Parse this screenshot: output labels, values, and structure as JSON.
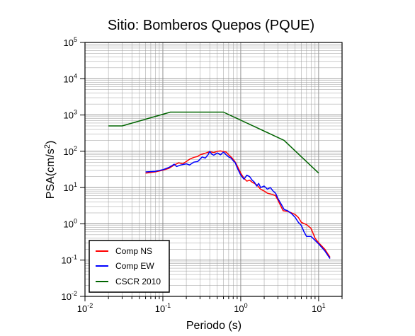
{
  "chart_data": {
    "type": "line",
    "title": "Sitio: Bomberos Quepos (PQUE)",
    "xlabel": "Periodo (s)",
    "ylabel_base": "PSA(cm/s",
    "ylabel_sup": "2",
    "ylabel_end": ")",
    "xscale": "log",
    "yscale": "log",
    "xlim": [
      0.01,
      20
    ],
    "ylim": [
      0.01,
      100000
    ],
    "grid": true,
    "legend_position": "bottom-left",
    "x_ticks": [
      {
        "base": "10",
        "exp": "-2",
        "value": 0.01
      },
      {
        "base": "10",
        "exp": "-1",
        "value": 0.1
      },
      {
        "base": "10",
        "exp": "0",
        "value": 1
      },
      {
        "base": "10",
        "exp": "1",
        "value": 10
      }
    ],
    "y_ticks": [
      {
        "base": "10",
        "exp": "-2",
        "value": 0.01
      },
      {
        "base": "10",
        "exp": "-1",
        "value": 0.1
      },
      {
        "base": "10",
        "exp": "0",
        "value": 1
      },
      {
        "base": "10",
        "exp": "1",
        "value": 10
      },
      {
        "base": "10",
        "exp": "2",
        "value": 100
      },
      {
        "base": "10",
        "exp": "3",
        "value": 1000
      },
      {
        "base": "10",
        "exp": "4",
        "value": 10000
      },
      {
        "base": "10",
        "exp": "5",
        "value": 100000
      }
    ],
    "series": [
      {
        "name": "Comp NS",
        "color": "#ff0000",
        "points": [
          [
            0.06,
            25
          ],
          [
            0.08,
            27
          ],
          [
            0.1,
            30
          ],
          [
            0.12,
            34
          ],
          [
            0.14,
            42
          ],
          [
            0.16,
            48
          ],
          [
            0.18,
            45
          ],
          [
            0.2,
            52
          ],
          [
            0.22,
            60
          ],
          [
            0.25,
            68
          ],
          [
            0.28,
            72
          ],
          [
            0.3,
            80
          ],
          [
            0.33,
            85
          ],
          [
            0.36,
            90
          ],
          [
            0.4,
            98
          ],
          [
            0.45,
            92
          ],
          [
            0.5,
            100
          ],
          [
            0.55,
            102
          ],
          [
            0.6,
            98
          ],
          [
            0.65,
            95
          ],
          [
            0.7,
            80
          ],
          [
            0.75,
            70
          ],
          [
            0.8,
            60
          ],
          [
            0.85,
            50
          ],
          [
            0.9,
            40
          ],
          [
            1.0,
            25
          ],
          [
            1.1,
            18
          ],
          [
            1.2,
            15
          ],
          [
            1.3,
            16
          ],
          [
            1.4,
            14
          ],
          [
            1.5,
            13
          ],
          [
            1.6,
            12
          ],
          [
            1.8,
            9
          ],
          [
            2.0,
            8
          ],
          [
            2.2,
            7
          ],
          [
            2.5,
            6.5
          ],
          [
            2.8,
            6
          ],
          [
            3.0,
            4.5
          ],
          [
            3.5,
            2.3
          ],
          [
            4.0,
            2.2
          ],
          [
            4.5,
            2.0
          ],
          [
            5.0,
            1.8
          ],
          [
            5.5,
            1.5
          ],
          [
            6.0,
            1.1
          ],
          [
            7.0,
            0.95
          ],
          [
            8.0,
            0.75
          ],
          [
            9.0,
            0.4
          ],
          [
            10.0,
            0.3
          ],
          [
            12.0,
            0.2
          ],
          [
            14.0,
            0.12
          ]
        ]
      },
      {
        "name": "Comp EW",
        "color": "#0000ff",
        "points": [
          [
            0.06,
            27
          ],
          [
            0.08,
            28
          ],
          [
            0.1,
            31
          ],
          [
            0.12,
            36
          ],
          [
            0.14,
            44
          ],
          [
            0.15,
            38
          ],
          [
            0.17,
            42
          ],
          [
            0.2,
            45
          ],
          [
            0.22,
            42
          ],
          [
            0.25,
            50
          ],
          [
            0.28,
            52
          ],
          [
            0.3,
            60
          ],
          [
            0.32,
            70
          ],
          [
            0.35,
            65
          ],
          [
            0.38,
            80
          ],
          [
            0.4,
            100
          ],
          [
            0.42,
            85
          ],
          [
            0.45,
            78
          ],
          [
            0.5,
            90
          ],
          [
            0.55,
            80
          ],
          [
            0.6,
            95
          ],
          [
            0.65,
            80
          ],
          [
            0.7,
            70
          ],
          [
            0.75,
            65
          ],
          [
            0.8,
            55
          ],
          [
            0.85,
            48
          ],
          [
            0.9,
            35
          ],
          [
            1.0,
            22
          ],
          [
            1.1,
            17
          ],
          [
            1.2,
            22
          ],
          [
            1.3,
            20
          ],
          [
            1.4,
            16
          ],
          [
            1.5,
            14
          ],
          [
            1.6,
            11
          ],
          [
            1.7,
            13
          ],
          [
            1.8,
            10
          ],
          [
            2.0,
            11
          ],
          [
            2.2,
            9
          ],
          [
            2.4,
            10
          ],
          [
            2.6,
            8
          ],
          [
            2.8,
            7
          ],
          [
            3.0,
            5
          ],
          [
            3.3,
            3.5
          ],
          [
            3.6,
            2.5
          ],
          [
            4.0,
            2.3
          ],
          [
            4.5,
            1.9
          ],
          [
            5.0,
            1.5
          ],
          [
            5.5,
            1.1
          ],
          [
            6.0,
            0.9
          ],
          [
            6.5,
            0.6
          ],
          [
            7.0,
            0.45
          ],
          [
            8.0,
            0.45
          ],
          [
            9.0,
            0.35
          ],
          [
            10.0,
            0.28
          ],
          [
            12.0,
            0.18
          ],
          [
            14.0,
            0.11
          ]
        ]
      },
      {
        "name": "CSCR 2010",
        "color": "#006400",
        "points": [
          [
            0.02,
            500
          ],
          [
            0.03,
            500
          ],
          [
            0.125,
            1200
          ],
          [
            0.6,
            1200
          ],
          [
            3.6,
            200
          ],
          [
            10.0,
            25
          ]
        ]
      }
    ]
  }
}
